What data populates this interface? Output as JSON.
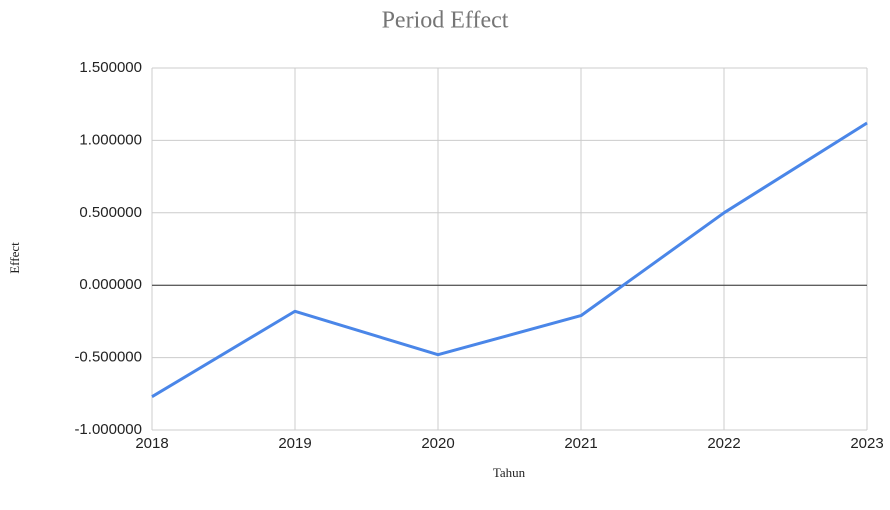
{
  "chart_data": {
    "type": "line",
    "title": "Period Effect",
    "xlabel": "Tahun",
    "ylabel": "Effect",
    "x": [
      2018,
      2019,
      2020,
      2021,
      2022,
      2023
    ],
    "series": [
      {
        "name": "Effect",
        "color": "#4a86e8",
        "values": [
          -0.77,
          -0.18,
          -0.48,
          -0.21,
          0.5,
          1.12
        ]
      }
    ],
    "xlim": [
      2018,
      2023
    ],
    "xticks": [
      2018,
      2019,
      2020,
      2021,
      2022,
      2023
    ],
    "ylim": [
      -1,
      1.5
    ],
    "yticks": [
      {
        "value": -1,
        "label": "-1.000000"
      },
      {
        "value": -0.5,
        "label": "-0.500000"
      },
      {
        "value": 0,
        "label": "0.000000"
      },
      {
        "value": 0.5,
        "label": "0.500000"
      },
      {
        "value": 1,
        "label": "1.000000"
      },
      {
        "value": 1.5,
        "label": "1.500000"
      }
    ],
    "grid": true
  }
}
